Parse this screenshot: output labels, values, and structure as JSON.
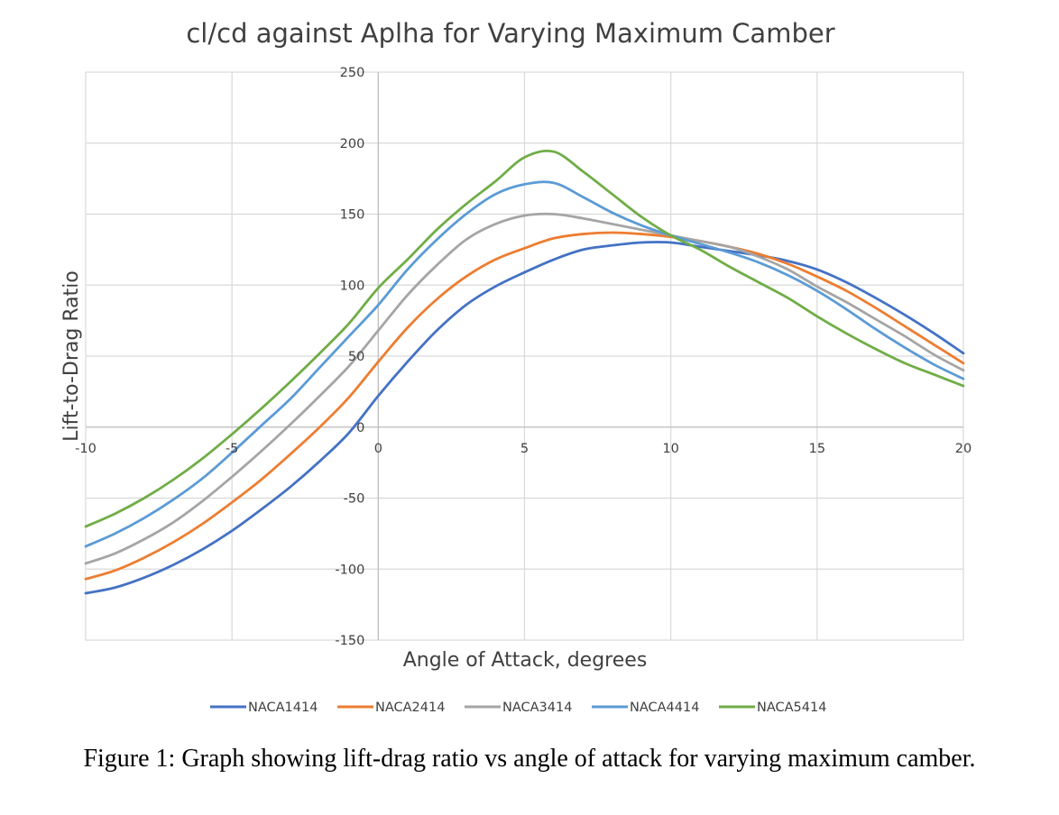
{
  "chart_data": {
    "type": "line",
    "title": "cl/cd against Aplha for Varying Maximum Camber",
    "xlabel": "Angle of Attack, degrees",
    "ylabel": "Lift-to-Drag Ratio",
    "xlim": [
      -10,
      20
    ],
    "ylim": [
      -150,
      250
    ],
    "xticks": [
      -10,
      -5,
      0,
      5,
      10,
      15,
      20
    ],
    "yticks": [
      -150,
      -100,
      -50,
      0,
      50,
      100,
      150,
      200,
      250
    ],
    "grid": true,
    "legend_position": "bottom",
    "x": [
      -10,
      -9,
      -8,
      -7,
      -6,
      -5,
      -4,
      -3,
      -2,
      -1,
      0,
      1,
      2,
      3,
      4,
      5,
      6,
      7,
      8,
      9,
      10,
      11,
      12,
      13,
      14,
      15,
      16,
      17,
      18,
      19,
      20
    ],
    "series": [
      {
        "name": "NACA1414",
        "color": "#4472C4",
        "values": [
          -117,
          -113,
          -106,
          -97,
          -86,
          -73,
          -58,
          -42,
          -24,
          -4,
          22,
          46,
          68,
          86,
          99,
          109,
          118,
          125,
          128,
          130,
          130,
          127,
          124,
          121,
          117,
          111,
          102,
          91,
          79,
          66,
          52
        ]
      },
      {
        "name": "NACA2414",
        "color": "#ED7D31",
        "values": [
          -107,
          -101,
          -92,
          -81,
          -68,
          -53,
          -37,
          -19,
          0,
          21,
          46,
          70,
          90,
          106,
          118,
          126,
          133,
          136,
          137,
          136,
          134,
          131,
          127,
          122,
          115,
          106,
          96,
          84,
          71,
          58,
          45
        ]
      },
      {
        "name": "NACA3414",
        "color": "#A5A5A5",
        "values": [
          -96,
          -89,
          -79,
          -67,
          -52,
          -35,
          -17,
          2,
          22,
          43,
          68,
          93,
          114,
          132,
          143,
          149,
          150,
          147,
          143,
          139,
          135,
          131,
          127,
          120,
          111,
          99,
          88,
          76,
          64,
          51,
          40
        ]
      },
      {
        "name": "NACA4414",
        "color": "#5B9BD5",
        "values": [
          -84,
          -75,
          -64,
          -51,
          -36,
          -18,
          1,
          20,
          42,
          64,
          86,
          111,
          132,
          150,
          164,
          171,
          172,
          162,
          151,
          142,
          135,
          129,
          123,
          116,
          107,
          96,
          83,
          69,
          56,
          44,
          34
        ]
      },
      {
        "name": "NACA5414",
        "color": "#70AD47",
        "values": [
          -70,
          -61,
          -50,
          -37,
          -22,
          -5,
          13,
          32,
          52,
          73,
          98,
          118,
          139,
          157,
          173,
          190,
          194,
          180,
          164,
          148,
          135,
          125,
          113,
          102,
          91,
          78,
          66,
          55,
          45,
          37,
          29
        ]
      }
    ]
  },
  "caption": "Figure 1: Graph showing lift-drag ratio vs angle of attack for varying maximum camber."
}
